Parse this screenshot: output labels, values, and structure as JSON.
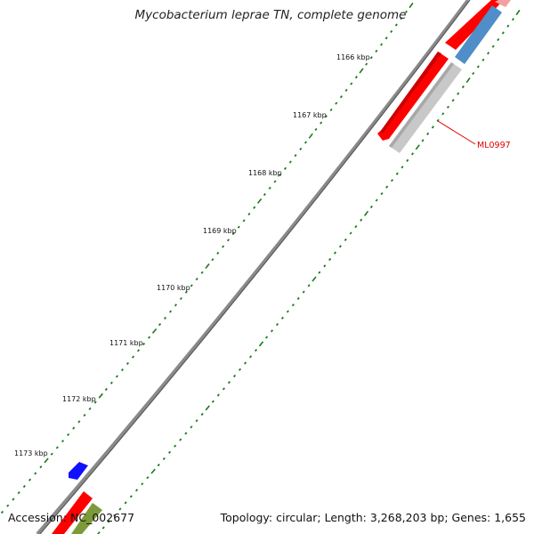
{
  "title": "Mycobacterium leprae TN, complete genome",
  "accession": "Accession: NC_002677",
  "summary": "Topology: circular; Length: 3,268,203 bp; Genes: 1,655",
  "ticks": [
    {
      "label": "1166 kbp"
    },
    {
      "label": "1167 kbp"
    },
    {
      "label": "1168 kbp"
    },
    {
      "label": "1169 kbp"
    },
    {
      "label": "1170 kbp"
    },
    {
      "label": "1171 kbp"
    },
    {
      "label": "1172 kbp"
    },
    {
      "label": "1173 kbp"
    }
  ],
  "gene_label": "ML0997",
  "colors": {
    "backbone": "#6e6e6e",
    "tick": "#1a7a1a",
    "cds_red": "#ff0000",
    "cds_gray": "#c8c8c8",
    "cds_blue": "#4f8ec8",
    "cds_pink": "#f4a0a0",
    "cds_darkblue": "#1010ff",
    "cds_olive": "#7d9a3a",
    "label": "#e00000"
  }
}
